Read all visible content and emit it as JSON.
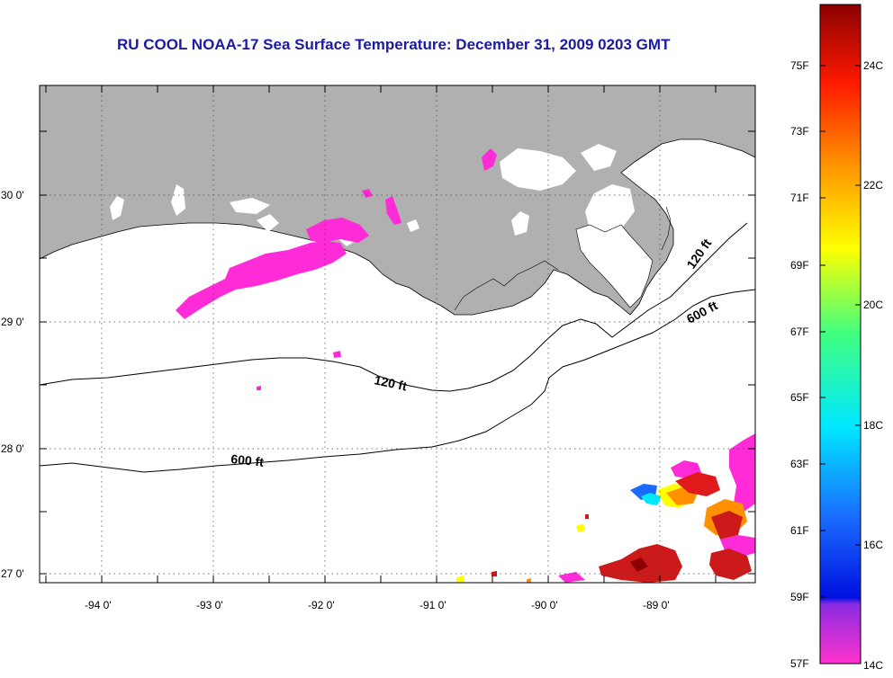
{
  "title": "RU COOL  NOAA-17  Sea Surface Temperature:  December 31, 2009 0203 GMT",
  "map": {
    "lat_labels": [
      "30 0'",
      "29 0'",
      "28 0'",
      "27 0'"
    ],
    "lon_labels": [
      "-94 0'",
      "-93 0'",
      "-92 0'",
      "-91 0'",
      "-90 0'",
      "-89 0'"
    ],
    "isobath_labels": [
      "120 ft",
      "600 ft",
      "120 ft",
      "600 ft"
    ],
    "colors": {
      "land": "#b0b0b0",
      "ocean": "#ffffff",
      "cloud": "#ffffff",
      "cold_sst": "#ff2bd6",
      "warm_sst": "#cc1a1a"
    }
  },
  "colorbar": {
    "fahrenheit": [
      "75F",
      "73F",
      "71F",
      "69F",
      "67F",
      "65F",
      "63F",
      "61F",
      "59F",
      "57F"
    ],
    "celsius": [
      "24C",
      "22C",
      "20C",
      "18C",
      "16C",
      "14C"
    ],
    "range_c": [
      14,
      25
    ]
  }
}
